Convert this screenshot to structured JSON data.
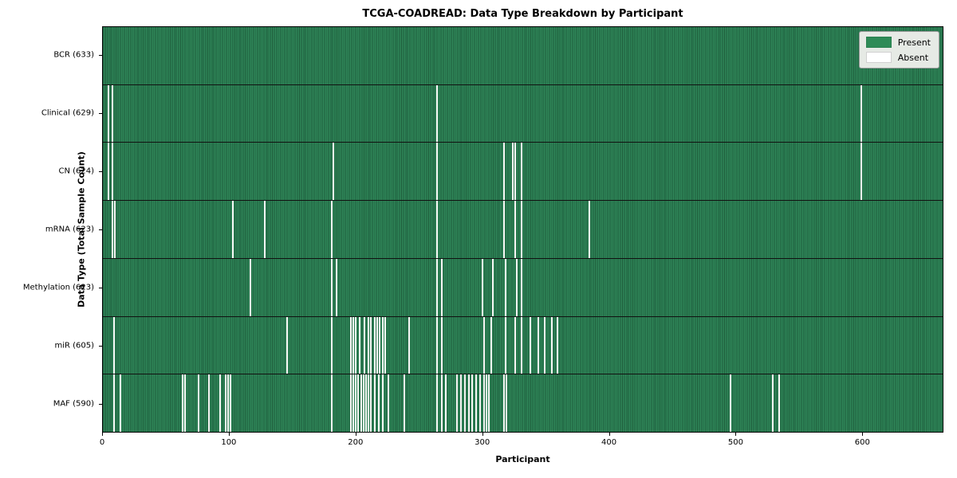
{
  "chart_data": {
    "type": "heatmap",
    "title": "TCGA-COADREAD: Data Type Breakdown by Participant",
    "xlabel": "Participant",
    "ylabel": "Data Type (Total Sample Count)",
    "x_ticks": [
      0,
      100,
      200,
      300,
      400,
      500,
      600
    ],
    "xlim": [
      0,
      664
    ],
    "total_participants": 633,
    "present_color": "#2e8b57",
    "absent_color": "#ffffff",
    "legend": {
      "position": "upper right",
      "items": [
        {
          "label": "Present",
          "color": "#2e8b57"
        },
        {
          "label": "Absent",
          "color": "#ffffff"
        }
      ]
    },
    "rows": [
      {
        "label": "BCR (633)",
        "data_type": "BCR",
        "present_count": 633,
        "absent_participants": []
      },
      {
        "label": "Clinical (629)",
        "data_type": "Clinical",
        "present_count": 629,
        "absent_participants": [
          4,
          7,
          263,
          598
        ]
      },
      {
        "label": "CN (624)",
        "data_type": "CN",
        "present_count": 624,
        "absent_participants": [
          4,
          7,
          181,
          263,
          316,
          323,
          325,
          330,
          598
        ]
      },
      {
        "label": "mRNA (623)",
        "data_type": "mRNA",
        "present_count": 623,
        "absent_participants": [
          7,
          9,
          102,
          127,
          180,
          263,
          316,
          325,
          330,
          383
        ]
      },
      {
        "label": "Methylation (623)",
        "data_type": "Methylation",
        "present_count": 623,
        "absent_participants": [
          116,
          180,
          184,
          263,
          267,
          299,
          307,
          317,
          326,
          330
        ]
      },
      {
        "label": "miR (605)",
        "data_type": "miR",
        "present_count": 605,
        "absent_participants": [
          8,
          145,
          180,
          195,
          197,
          199,
          202,
          206,
          209,
          211,
          214,
          216,
          218,
          220,
          222,
          241,
          263,
          267,
          300,
          306,
          317,
          325,
          330,
          337,
          343,
          348,
          354,
          358
        ]
      },
      {
        "label": "MAF (590)",
        "data_type": "MAF",
        "present_count": 590,
        "absent_participants": [
          8,
          13,
          62,
          64,
          75,
          83,
          92,
          96,
          98,
          100,
          180,
          195,
          197,
          199,
          201,
          203,
          205,
          207,
          209,
          211,
          214,
          217,
          220,
          225,
          237,
          263,
          267,
          270,
          279,
          282,
          285,
          288,
          291,
          294,
          297,
          300,
          302,
          304,
          316,
          318,
          495,
          528,
          533
        ]
      }
    ]
  }
}
